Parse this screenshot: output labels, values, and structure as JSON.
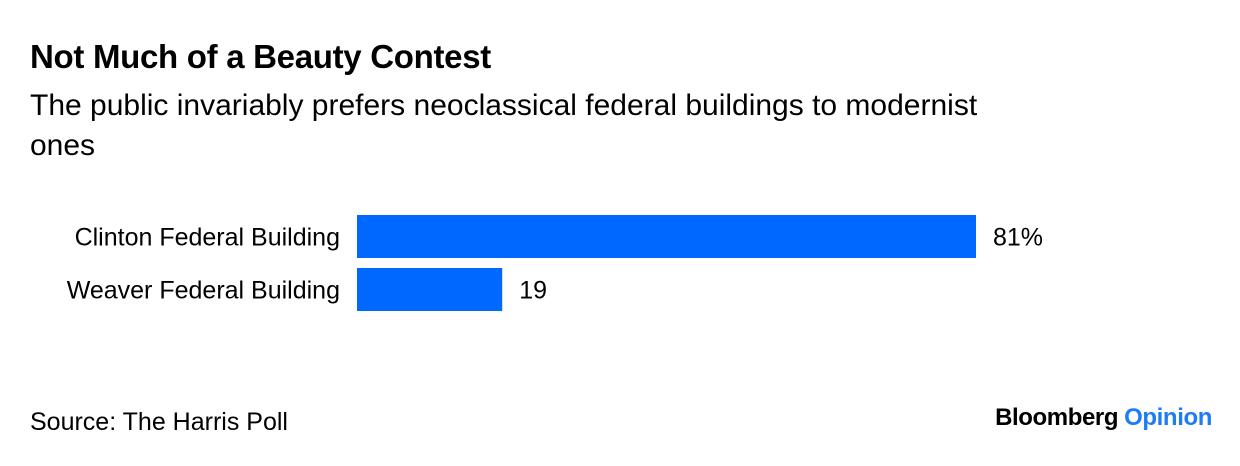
{
  "header": {
    "title": "Not Much of a Beauty Contest",
    "subtitle": "The public invariably prefers neoclassical federal buildings to modernist ones"
  },
  "chart_data": {
    "type": "bar",
    "orientation": "horizontal",
    "categories": [
      "Clinton Federal Building",
      "Weaver Federal Building"
    ],
    "values": [
      81,
      19
    ],
    "value_labels": [
      "81%",
      "19"
    ],
    "xlim": [
      0,
      81
    ],
    "grid": false,
    "bar_color": "#0068ff"
  },
  "footer": {
    "source": "Source: The Harris Poll",
    "brand_primary": "Bloomberg",
    "brand_secondary": "Opinion"
  }
}
